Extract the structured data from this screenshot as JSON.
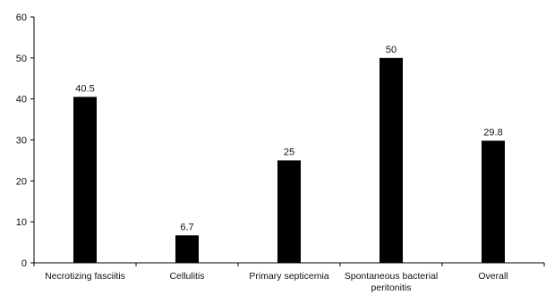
{
  "chart_data": {
    "type": "bar",
    "categories": [
      [
        "Necrotizing fasciitis"
      ],
      [
        "Cellulitis"
      ],
      [
        "Primary septicemia"
      ],
      [
        "Spontaneous bacterial",
        "peritonitis"
      ],
      [
        "Overall"
      ]
    ],
    "values": [
      40.5,
      6.7,
      25,
      50,
      29.8
    ],
    "data_labels": [
      "40.5",
      "6.7",
      "25",
      "50",
      "29.8"
    ],
    "ylim": [
      0,
      60
    ],
    "yticks": [
      0,
      10,
      20,
      30,
      40,
      50,
      60
    ],
    "title": "",
    "xlabel": "",
    "ylabel": "",
    "grid": false,
    "bar_color": "#000000"
  }
}
